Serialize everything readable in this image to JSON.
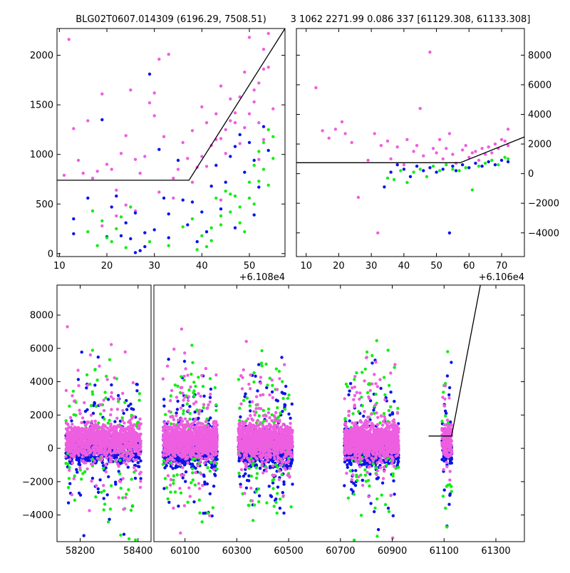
{
  "header": {
    "left_title": "BLG02T0607.014309 (6196.29, 7508.51)",
    "right_title": "3 1062 2271.99 0.086 337 [61129.308, 61133.308]"
  },
  "colors": {
    "pink": "#ee5ee0",
    "blue": "#0a14e8",
    "green": "#14ee14"
  },
  "chart_data": [
    {
      "id": "zoom",
      "type": "scatter",
      "offset_label": "+6.108e4",
      "xlim": [
        9.5,
        57.5
      ],
      "ylim": [
        -30,
        2270
      ],
      "xticks": [
        10,
        20,
        30,
        40,
        50
      ],
      "yticks": [
        0,
        500,
        1000,
        1500,
        2000
      ],
      "fit_line": {
        "x": [
          9.5,
          37.3,
          57.5
        ],
        "y": [
          740,
          740,
          2270
        ]
      },
      "series": [
        {
          "name": "pink",
          "color": "#ee5ee0",
          "points": [
            [
              11,
              790
            ],
            [
              12,
              2160
            ],
            [
              13,
              1260
            ],
            [
              14,
              940
            ],
            [
              15,
              810
            ],
            [
              16,
              1340
            ],
            [
              17,
              760
            ],
            [
              18,
              830
            ],
            [
              19,
              1610
            ],
            [
              20,
              900
            ],
            [
              21,
              850
            ],
            [
              22,
              640
            ],
            [
              23,
              1010
            ],
            [
              24,
              1190
            ],
            [
              25,
              1650
            ],
            [
              26,
              950
            ],
            [
              27,
              810
            ],
            [
              28,
              980
            ],
            [
              29,
              1520
            ],
            [
              30,
              1390
            ],
            [
              30,
              1620
            ],
            [
              31,
              1960
            ],
            [
              32,
              1180
            ],
            [
              33,
              2010
            ],
            [
              34,
              760
            ],
            [
              35,
              850
            ],
            [
              36,
              1120
            ],
            [
              37,
              960
            ],
            [
              38,
              1240
            ],
            [
              39,
              870
            ],
            [
              40,
              1480
            ],
            [
              41,
              1320
            ],
            [
              42,
              1090
            ],
            [
              43,
              1410
            ],
            [
              44,
              1690
            ],
            [
              45,
              1250
            ],
            [
              46,
              1560
            ],
            [
              47,
              1420
            ],
            [
              48,
              1110
            ],
            [
              49,
              1830
            ],
            [
              50,
              2180
            ],
            [
              51,
              1650
            ],
            [
              52,
              1320
            ],
            [
              53,
              2060
            ],
            [
              54,
              1880
            ],
            [
              55,
              1460
            ],
            [
              41,
              880
            ],
            [
              43,
              1150
            ],
            [
              45,
              1010
            ],
            [
              47,
              1320
            ],
            [
              49,
              1270
            ],
            [
              51,
              1530
            ],
            [
              52,
              1720
            ],
            [
              53,
              1860
            ],
            [
              54,
              2220
            ],
            [
              38,
              720
            ],
            [
              40,
              980
            ],
            [
              44,
              1160
            ],
            [
              46,
              1340
            ],
            [
              48,
              1580
            ],
            [
              50,
              1410
            ],
            [
              22,
              380
            ],
            [
              24,
              490
            ],
            [
              26,
              430
            ],
            [
              19,
              280
            ],
            [
              31,
              620
            ],
            [
              34,
              560
            ],
            [
              44,
              540
            ],
            [
              52,
              950
            ],
            [
              53,
              1150
            ]
          ]
        },
        {
          "name": "blue",
          "color": "#0a14e8",
          "points": [
            [
              13,
              200
            ],
            [
              13,
              350
            ],
            [
              16,
              560
            ],
            [
              19,
              1350
            ],
            [
              20,
              170
            ],
            [
              21,
              470
            ],
            [
              22,
              580
            ],
            [
              23,
              180
            ],
            [
              24,
              310
            ],
            [
              25,
              150
            ],
            [
              26,
              410
            ],
            [
              27,
              30
            ],
            [
              28,
              210
            ],
            [
              29,
              1810
            ],
            [
              30,
              240
            ],
            [
              31,
              1050
            ],
            [
              32,
              560
            ],
            [
              33,
              400
            ],
            [
              35,
              940
            ],
            [
              36,
              540
            ],
            [
              37,
              290
            ],
            [
              38,
              520
            ],
            [
              40,
              420
            ],
            [
              41,
              220
            ],
            [
              42,
              680
            ],
            [
              43,
              890
            ],
            [
              44,
              450
            ],
            [
              45,
              720
            ],
            [
              46,
              980
            ],
            [
              47,
              1080
            ],
            [
              48,
              1200
            ],
            [
              49,
              820
            ],
            [
              50,
              1120
            ],
            [
              51,
              940
            ],
            [
              52,
              670
            ],
            [
              53,
              1280
            ],
            [
              54,
              1040
            ],
            [
              26,
              10
            ],
            [
              28,
              70
            ],
            [
              33,
              160
            ],
            [
              39,
              120
            ],
            [
              47,
              260
            ],
            [
              51,
              390
            ]
          ]
        },
        {
          "name": "green",
          "color": "#14ee14",
          "points": [
            [
              16,
              220
            ],
            [
              17,
              430
            ],
            [
              18,
              80
            ],
            [
              19,
              330
            ],
            [
              20,
              160
            ],
            [
              21,
              120
            ],
            [
              22,
              250
            ],
            [
              23,
              370
            ],
            [
              24,
              60
            ],
            [
              25,
              470
            ],
            [
              29,
              120
            ],
            [
              33,
              80
            ],
            [
              36,
              270
            ],
            [
              38,
              350
            ],
            [
              40,
              180
            ],
            [
              41,
              70
            ],
            [
              42,
              130
            ],
            [
              43,
              560
            ],
            [
              44,
              290
            ],
            [
              45,
              630
            ],
            [
              46,
              420
            ],
            [
              47,
              580
            ],
            [
              48,
              310
            ],
            [
              49,
              220
            ],
            [
              50,
              720
            ],
            [
              51,
              890
            ],
            [
              52,
              1030
            ],
            [
              53,
              1120
            ],
            [
              54,
              1250
            ],
            [
              55,
              960
            ],
            [
              53,
              850
            ],
            [
              52,
              730
            ],
            [
              54,
              690
            ],
            [
              51,
              500
            ],
            [
              48,
              470
            ],
            [
              46,
              600
            ],
            [
              39,
              40
            ],
            [
              42,
              260
            ],
            [
              44,
              380
            ],
            [
              50,
              560
            ],
            [
              55,
              1180
            ]
          ]
        }
      ]
    },
    {
      "id": "mid",
      "type": "scatter",
      "offset_label": "+6.106e4",
      "xlim": [
        7,
        77
      ],
      "ylim": [
        -5600,
        9800
      ],
      "xticks": [
        10,
        20,
        30,
        40,
        50,
        60,
        70
      ],
      "yticks": [
        -4000,
        -2000,
        0,
        2000,
        4000,
        6000,
        8000
      ],
      "fit_line": {
        "x": [
          7,
          57.3,
          77
        ],
        "y": [
          740,
          740,
          2480
        ]
      },
      "series": [
        {
          "name": "pink",
          "color": "#ee5ee0",
          "points": [
            [
              13,
              5800
            ],
            [
              15,
              2900
            ],
            [
              17,
              2400
            ],
            [
              19,
              3000
            ],
            [
              21,
              3500
            ],
            [
              22,
              2700
            ],
            [
              24,
              2100
            ],
            [
              26,
              -1600
            ],
            [
              29,
              900
            ],
            [
              31,
              2700
            ],
            [
              32,
              -4000
            ],
            [
              33,
              1900
            ],
            [
              35,
              2200
            ],
            [
              36,
              1000
            ],
            [
              38,
              1800
            ],
            [
              40,
              600
            ],
            [
              41,
              2300
            ],
            [
              43,
              1500
            ],
            [
              44,
              1900
            ],
            [
              45,
              4400
            ],
            [
              46,
              1200
            ],
            [
              48,
              8200
            ],
            [
              49,
              1700
            ],
            [
              50,
              1400
            ],
            [
              51,
              2300
            ],
            [
              52,
              1000
            ],
            [
              53,
              1700
            ],
            [
              54,
              2700
            ],
            [
              55,
              1300
            ],
            [
              56,
              700
            ],
            [
              58,
              1600
            ],
            [
              59,
              1900
            ],
            [
              60,
              1100
            ],
            [
              61,
              1400
            ],
            [
              62,
              1500
            ],
            [
              63,
              900
            ],
            [
              64,
              1700
            ],
            [
              65,
              1300
            ],
            [
              66,
              1800
            ],
            [
              67,
              1400
            ],
            [
              68,
              2000
            ],
            [
              69,
              1700
            ],
            [
              70,
              2300
            ],
            [
              71,
              2200
            ],
            [
              72,
              1900
            ],
            [
              72,
              3000
            ]
          ]
        },
        {
          "name": "blue",
          "color": "#0a14e8",
          "points": [
            [
              34,
              -900
            ],
            [
              36,
              100
            ],
            [
              38,
              600
            ],
            [
              40,
              300
            ],
            [
              42,
              -200
            ],
            [
              44,
              500
            ],
            [
              46,
              200
            ],
            [
              48,
              400
            ],
            [
              50,
              100
            ],
            [
              52,
              300
            ],
            [
              54,
              -4000
            ],
            [
              55,
              500
            ],
            [
              56,
              200
            ],
            [
              58,
              600
            ],
            [
              60,
              400
            ],
            [
              62,
              700
            ],
            [
              64,
              500
            ],
            [
              66,
              800
            ],
            [
              68,
              600
            ],
            [
              70,
              900
            ],
            [
              72,
              800
            ]
          ]
        },
        {
          "name": "green",
          "color": "#14ee14",
          "points": [
            [
              35,
              -300
            ],
            [
              37,
              -400
            ],
            [
              39,
              200
            ],
            [
              41,
              -600
            ],
            [
              43,
              100
            ],
            [
              45,
              300
            ],
            [
              47,
              -200
            ],
            [
              49,
              500
            ],
            [
              51,
              200
            ],
            [
              53,
              600
            ],
            [
              55,
              300
            ],
            [
              57,
              200
            ],
            [
              59,
              400
            ],
            [
              61,
              -1100
            ],
            [
              63,
              500
            ],
            [
              65,
              700
            ],
            [
              67,
              900
            ],
            [
              69,
              600
            ],
            [
              71,
              1100
            ],
            [
              72,
              1000
            ]
          ]
        }
      ]
    },
    {
      "id": "full",
      "type": "scatter",
      "xlim": [
        58120,
        61410
      ],
      "ylim": [
        -5600,
        9800
      ],
      "xticks": [
        58200,
        58400,
        60100,
        60300,
        60500,
        60700,
        60900,
        61100,
        61300
      ],
      "yticks": [
        -4000,
        -2000,
        0,
        2000,
        4000,
        6000,
        8000
      ],
      "broken_axis": {
        "left_range": [
          58120,
          58445
        ],
        "right_range": [
          59980,
          61410
        ]
      },
      "fit_line": {
        "x": [
          61040,
          61129,
          61240
        ],
        "y": [
          740,
          740,
          9800
        ]
      },
      "seasons": [
        {
          "start": 58150,
          "end": 58410
        },
        {
          "start": 60015,
          "end": 60225
        },
        {
          "start": 60305,
          "end": 60515
        },
        {
          "start": 60715,
          "end": 60925
        },
        {
          "start": 61092,
          "end": 61130
        }
      ]
    }
  ]
}
